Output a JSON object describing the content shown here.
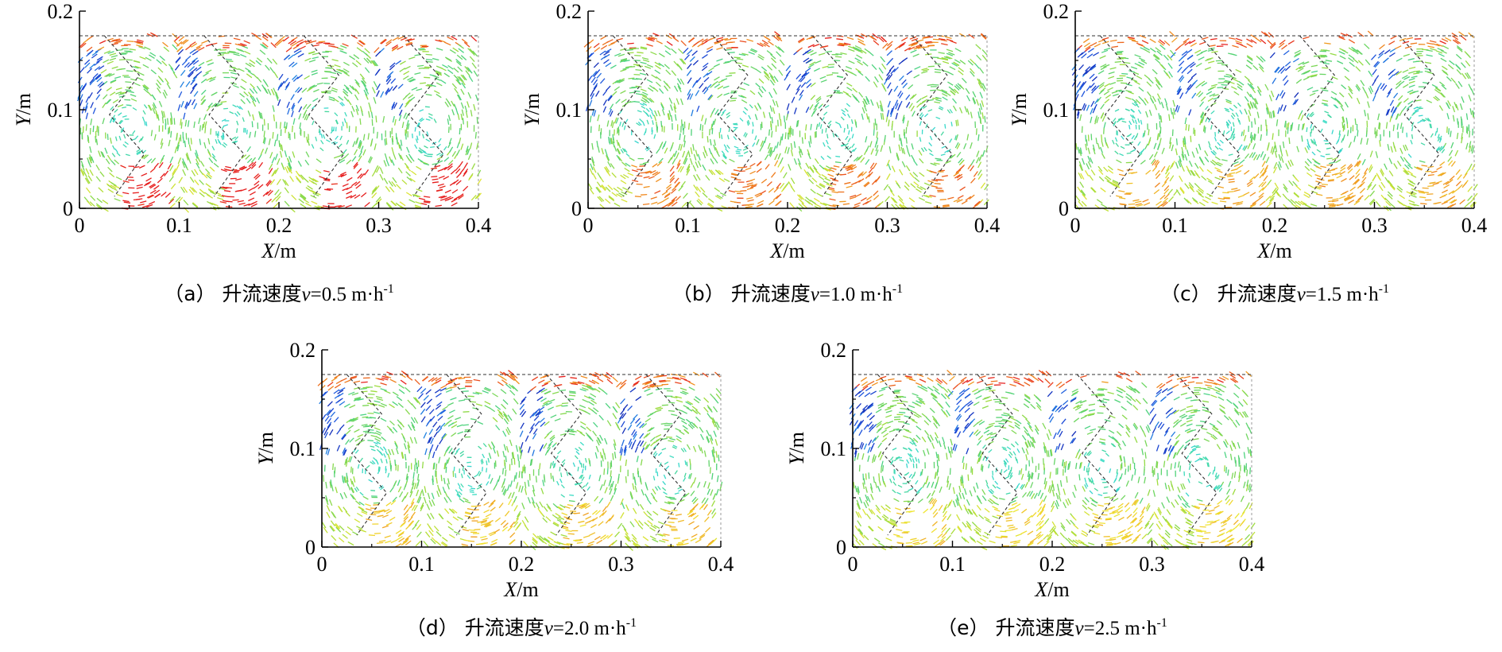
{
  "chart_data": [
    {
      "type": "vector-field",
      "caption": {
        "prefix": "（a） 升流速度",
        "var": "v",
        "value": "=0.5 m·h",
        "exp": "-1"
      },
      "velocity": 0.5,
      "xlabel": {
        "var": "X",
        "unit": "/m"
      },
      "ylabel": {
        "var": "Y",
        "unit": "/m"
      },
      "xlim": [
        0,
        0.4
      ],
      "ylim": [
        0,
        0.2
      ],
      "xticks": [
        "0",
        "0.1",
        "0.2",
        "0.3",
        "0.4"
      ],
      "yticks": [
        "0",
        "0.1",
        "0.2"
      ]
    },
    {
      "type": "vector-field",
      "caption": {
        "prefix": "（b） 升流速度",
        "var": "v",
        "value": "=1.0 m·h",
        "exp": "-1"
      },
      "velocity": 1.0,
      "xlabel": {
        "var": "X",
        "unit": "/m"
      },
      "ylabel": {
        "var": "Y",
        "unit": "/m"
      },
      "xlim": [
        0,
        0.4
      ],
      "ylim": [
        0,
        0.2
      ],
      "xticks": [
        "0",
        "0.1",
        "0.2",
        "0.3",
        "0.4"
      ],
      "yticks": [
        "0",
        "0.1",
        "0.2"
      ]
    },
    {
      "type": "vector-field",
      "caption": {
        "prefix": "（c） 升流速度",
        "var": "v",
        "value": "=1.5 m·h",
        "exp": "-1"
      },
      "velocity": 1.5,
      "xlabel": {
        "var": "X",
        "unit": "/m"
      },
      "ylabel": {
        "var": "Y",
        "unit": "/m"
      },
      "xlim": [
        0,
        0.4
      ],
      "ylim": [
        0,
        0.2
      ],
      "xticks": [
        "0",
        "0.1",
        "0.2",
        "0.3",
        "0.4"
      ],
      "yticks": [
        "0",
        "0.1",
        "0.2"
      ]
    },
    {
      "type": "vector-field",
      "caption": {
        "prefix": "（d） 升流速度",
        "var": "v",
        "value": "=2.0 m·h",
        "exp": "-1"
      },
      "velocity": 2.0,
      "xlabel": {
        "var": "X",
        "unit": "/m"
      },
      "ylabel": {
        "var": "Y",
        "unit": "/m"
      },
      "xlim": [
        0,
        0.4
      ],
      "ylim": [
        0,
        0.2
      ],
      "xticks": [
        "0",
        "0.1",
        "0.2",
        "0.3",
        "0.4"
      ],
      "yticks": [
        "0",
        "0.1",
        "0.2"
      ]
    },
    {
      "type": "vector-field",
      "caption": {
        "prefix": "（e） 升流速度",
        "var": "v",
        "value": "=2.5 m·h",
        "exp": "-1"
      },
      "velocity": 2.5,
      "xlabel": {
        "var": "X",
        "unit": "/m"
      },
      "ylabel": {
        "var": "Y",
        "unit": "/m"
      },
      "xlim": [
        0,
        0.4
      ],
      "ylim": [
        0,
        0.2
      ],
      "xticks": [
        "0",
        "0.1",
        "0.2",
        "0.3",
        "0.4"
      ],
      "yticks": [
        "0",
        "0.1",
        "0.2"
      ]
    }
  ],
  "colors": {
    "colormap": [
      "#0a14a0",
      "#1e50dc",
      "#28b4e6",
      "#3cdcc8",
      "#50d278",
      "#a0dc3c",
      "#f0e632",
      "#f08c1e",
      "#e61e1e"
    ],
    "axis": "#000000",
    "baffle": "#333333"
  }
}
